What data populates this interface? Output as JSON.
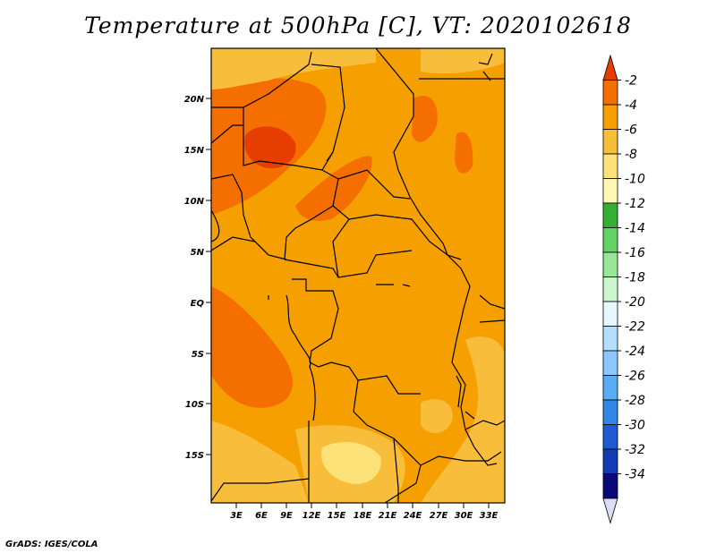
{
  "title": "Temperature at 500hPa [C], VT: 2020102618",
  "credit": "GrADS: IGES/COLA",
  "map": {
    "lat_ticks": [
      "20N",
      "15N",
      "10N",
      "5N",
      "EQ",
      "5S",
      "10S",
      "15S"
    ],
    "lon_ticks": [
      "3E",
      "6E",
      "9E",
      "12E",
      "15E",
      "18E",
      "21E",
      "24E",
      "27E",
      "30E",
      "33E"
    ]
  },
  "colorbar": {
    "labels": [
      "-2",
      "-4",
      "-6",
      "-8",
      "-10",
      "-12",
      "-14",
      "-16",
      "-18",
      "-20",
      "-22",
      "-24",
      "-26",
      "-28",
      "-30",
      "-32",
      "-34"
    ],
    "colors": [
      "#e63d00",
      "#f56f00",
      "#f5a000",
      "#f9bd3c",
      "#fde27a",
      "#fef8b4",
      "#33b033",
      "#66d266",
      "#99e699",
      "#cbf5cb",
      "#e6f8ff",
      "#b4deff",
      "#8cc8ff",
      "#5aacf5",
      "#3286e6",
      "#1e5ad2",
      "#143cb4",
      "#0a0a78",
      "#dcdcf5"
    ]
  }
}
